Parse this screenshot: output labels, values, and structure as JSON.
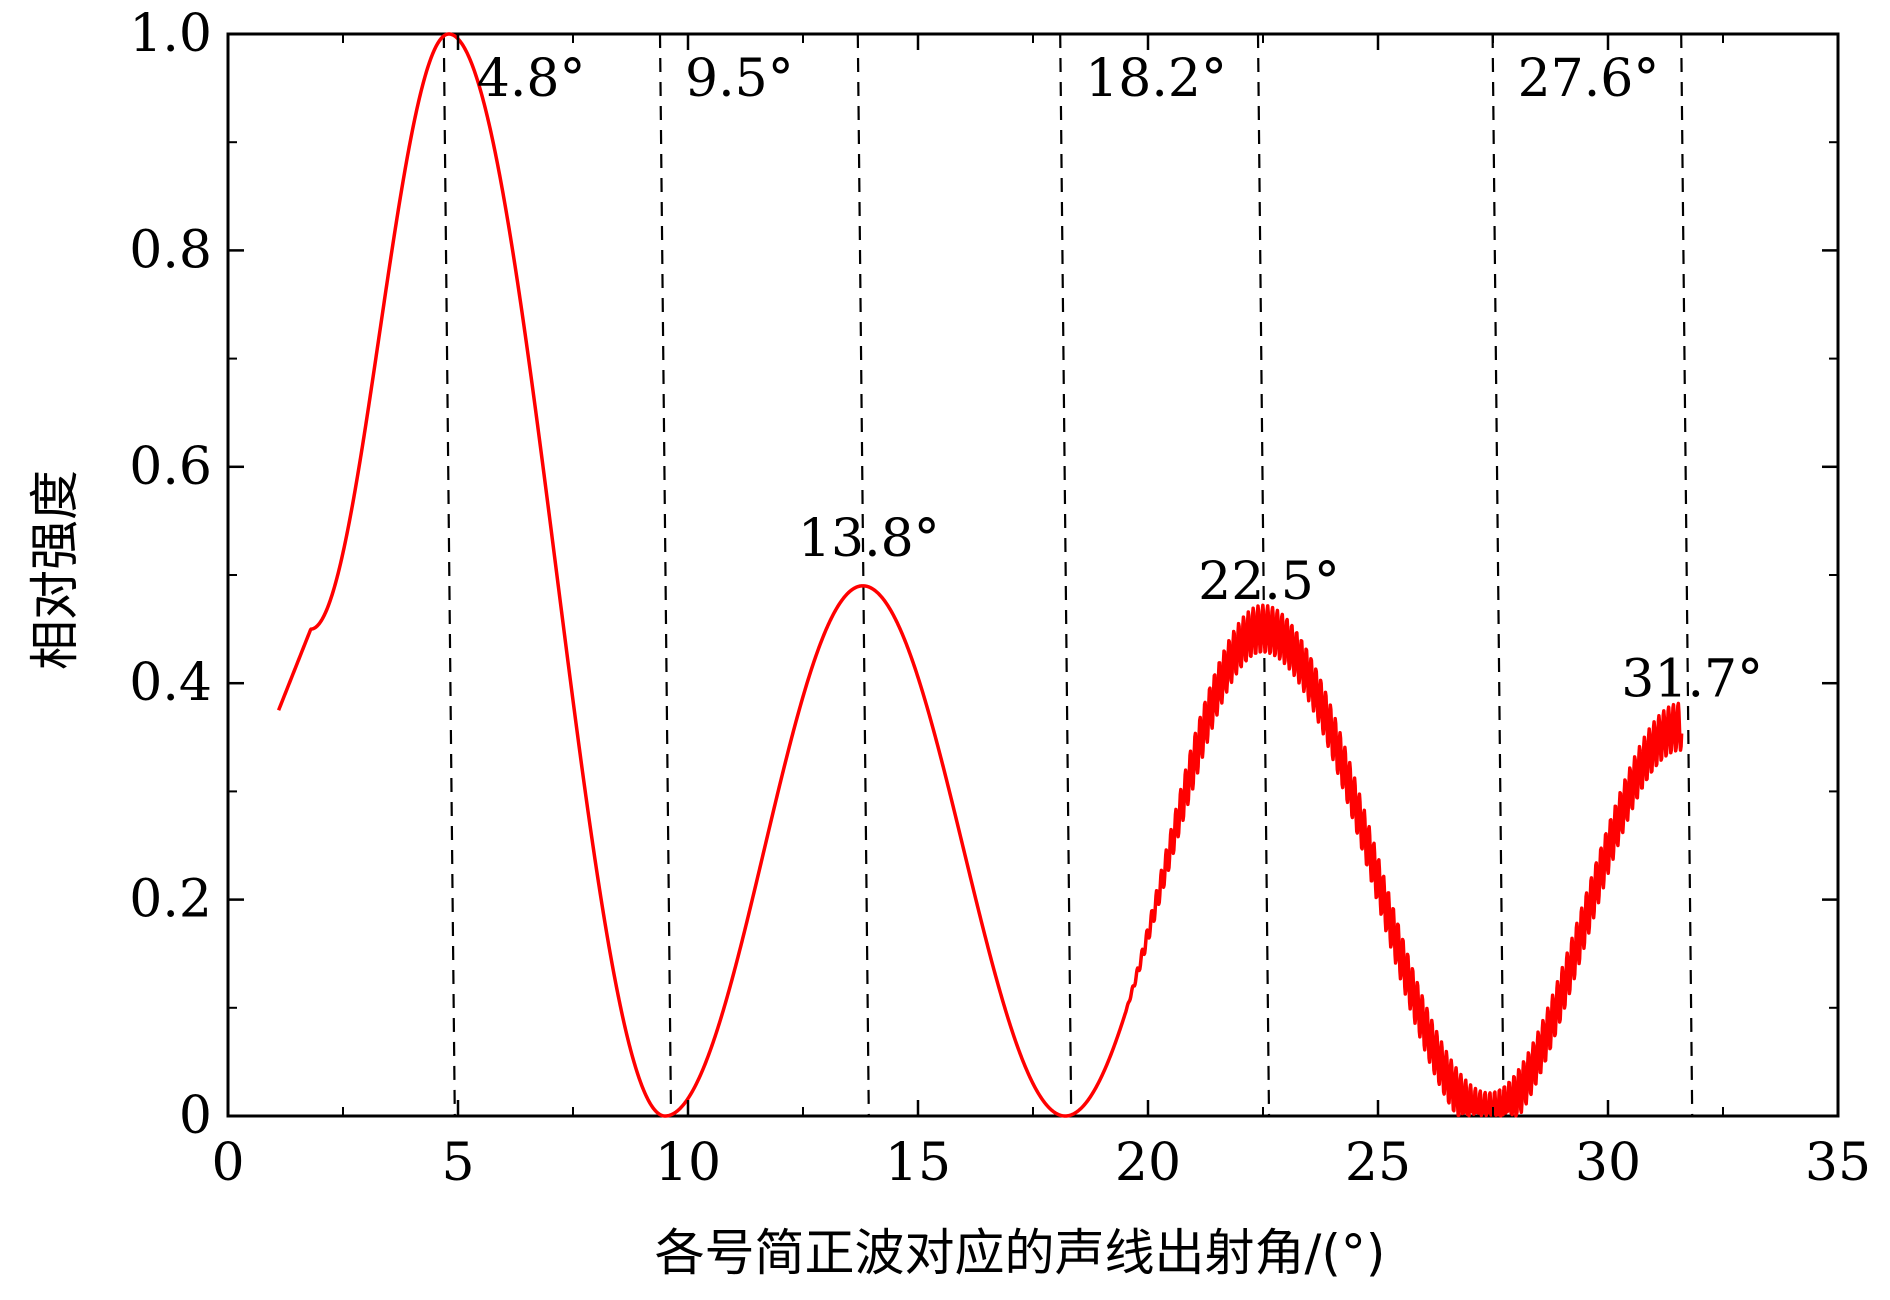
{
  "chart_data": {
    "type": "line",
    "title": "",
    "xlabel": "各号简正波对应的声线出射角/(°)",
    "ylabel": "相对强度",
    "xlim": [
      0,
      35
    ],
    "ylim": [
      0,
      1.0
    ],
    "xticks": [
      0,
      5,
      10,
      15,
      20,
      25,
      30,
      35
    ],
    "xtick_labels": [
      "0",
      "5",
      "10",
      "15",
      "20",
      "25",
      "30",
      "35"
    ],
    "yticks": [
      0,
      0.2,
      0.4,
      0.6,
      0.8,
      1.0
    ],
    "ytick_labels": [
      "0",
      "0.2",
      "0.4",
      "0.6",
      "0.8",
      "1.0"
    ],
    "grid": false,
    "line_color": "#ff0000",
    "series": [
      {
        "color": "#ff0000",
        "x_range": [
          1.1,
          31.6
        ],
        "key_points": [
          {
            "x": 1.1,
            "y": 0.375
          },
          {
            "x": 1.8,
            "y": 0.45
          },
          {
            "x": 4.8,
            "y": 1.0
          },
          {
            "x": 9.5,
            "y": 0.0
          },
          {
            "x": 13.8,
            "y": 0.49
          },
          {
            "x": 18.2,
            "y": 0.0
          },
          {
            "x": 22.5,
            "y": 0.45
          },
          {
            "x": 27.4,
            "y": 0.0
          },
          {
            "x": 31.6,
            "y": 0.36
          }
        ],
        "oscillating_from_x": 19.5
      }
    ],
    "annotations": [
      {
        "x": 4.8,
        "label": "4.8°",
        "kind": "peak"
      },
      {
        "x": 9.5,
        "label": "9.5°",
        "kind": "null"
      },
      {
        "x": 13.8,
        "label": "13.8°",
        "kind": "peak"
      },
      {
        "x": 18.2,
        "label": "18.2°",
        "kind": "null"
      },
      {
        "x": 22.5,
        "label": "22.5°",
        "kind": "peak"
      },
      {
        "x": 27.6,
        "label": "27.6°",
        "kind": "null"
      },
      {
        "x": 31.7,
        "label": "31.7°",
        "kind": "peak"
      }
    ]
  }
}
